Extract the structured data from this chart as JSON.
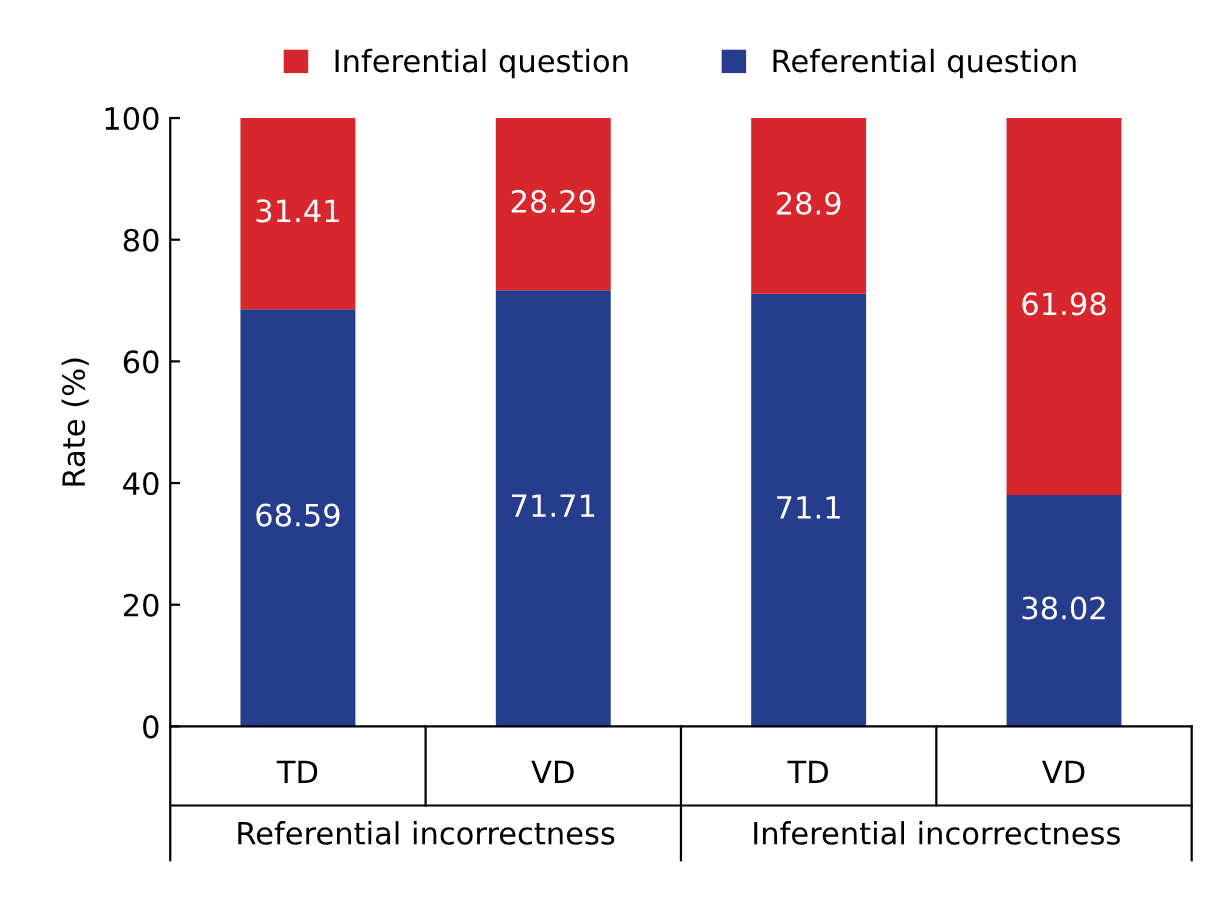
{
  "chart_data": {
    "type": "bar",
    "stacked": true,
    "ylabel": "Rate (%)",
    "categories": [
      "TD",
      "VD",
      "TD",
      "VD"
    ],
    "series": [
      {
        "name": "Referential question",
        "color": "#253d8c",
        "values": [
          68.59,
          71.71,
          71.1,
          38.02
        ]
      },
      {
        "name": "Inferential question",
        "color": "#d7262c",
        "values": [
          31.41,
          28.29,
          28.9,
          61.98
        ]
      }
    ],
    "annotations": [
      "Referential incorrectness",
      "Inferential incorrectness"
    ],
    "ylim": [
      0,
      100
    ],
    "yticks": [
      0,
      20,
      40,
      60,
      80,
      100
    ],
    "data_labels": true,
    "legend": "top",
    "grid": false
  }
}
